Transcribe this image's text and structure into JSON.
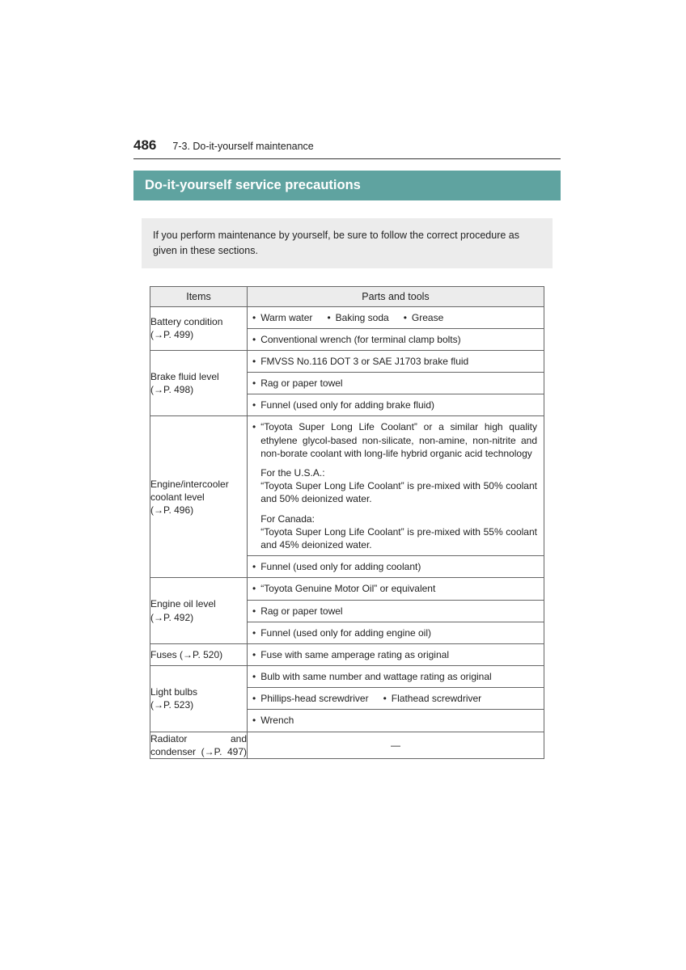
{
  "page_number": "486",
  "section_path": "7-3. Do-it-yourself maintenance",
  "title": "Do-it-yourself service precautions",
  "intro": "If you perform maintenance by yourself, be sure to follow the correct procedure as given in these sections.",
  "columns": {
    "items": "Items",
    "tools": "Parts and tools"
  },
  "rows": {
    "battery": {
      "label": "Battery condition",
      "ref": "(→P. 499)",
      "line1_a": "Warm water",
      "line1_b": "Baking soda",
      "line1_c": "Grease",
      "line2": "Conventional wrench (for terminal clamp bolts)"
    },
    "brake": {
      "label": "Brake fluid level",
      "ref": "(→P. 498)",
      "l1": "FMVSS No.116 DOT 3 or SAE J1703 brake fluid",
      "l2": "Rag or paper towel",
      "l3": "Funnel (used only for adding brake fluid)"
    },
    "coolant": {
      "label": "Engine/intercooler coolant level",
      "ref": "(→P. 496)",
      "p1": "“Toyota Super Long Life Coolant” or a similar high quality ethylene glycol-based non-silicate, non-amine, non-nitrite and non-borate coolant with long-life hybrid organic acid technology",
      "p2a": "For the U.S.A.:",
      "p2b": "“Toyota Super Long Life Coolant” is pre-mixed with 50% coolant and 50% deionized water.",
      "p3a": "For Canada:",
      "p3b": "“Toyota Super Long Life Coolant” is pre-mixed with 55% coolant and 45% deionized water.",
      "l2": "Funnel (used only for adding coolant)"
    },
    "oil": {
      "label": "Engine oil level",
      "ref": "(→P. 492)",
      "l1": "“Toyota Genuine Motor Oil” or equivalent",
      "l2": "Rag or paper towel",
      "l3": "Funnel (used only for adding engine oil)"
    },
    "fuses": {
      "label": "Fuses (→P. 520)",
      "l1": "Fuse with same amperage rating as original"
    },
    "bulbs": {
      "label": "Light bulbs",
      "ref": "(→P. 523)",
      "l1": "Bulb with same number and wattage rating as original",
      "l2a": "Phillips-head screwdriver",
      "l2b": "Flathead screwdriver",
      "l3": "Wrench"
    },
    "radiator": {
      "label": "Radiator and condenser (→P. 497)",
      "dash": "—"
    }
  },
  "colors": {
    "title_bg": "#5fa3a0",
    "intro_bg": "#ececec",
    "border": "#666666",
    "text": "#222222"
  }
}
